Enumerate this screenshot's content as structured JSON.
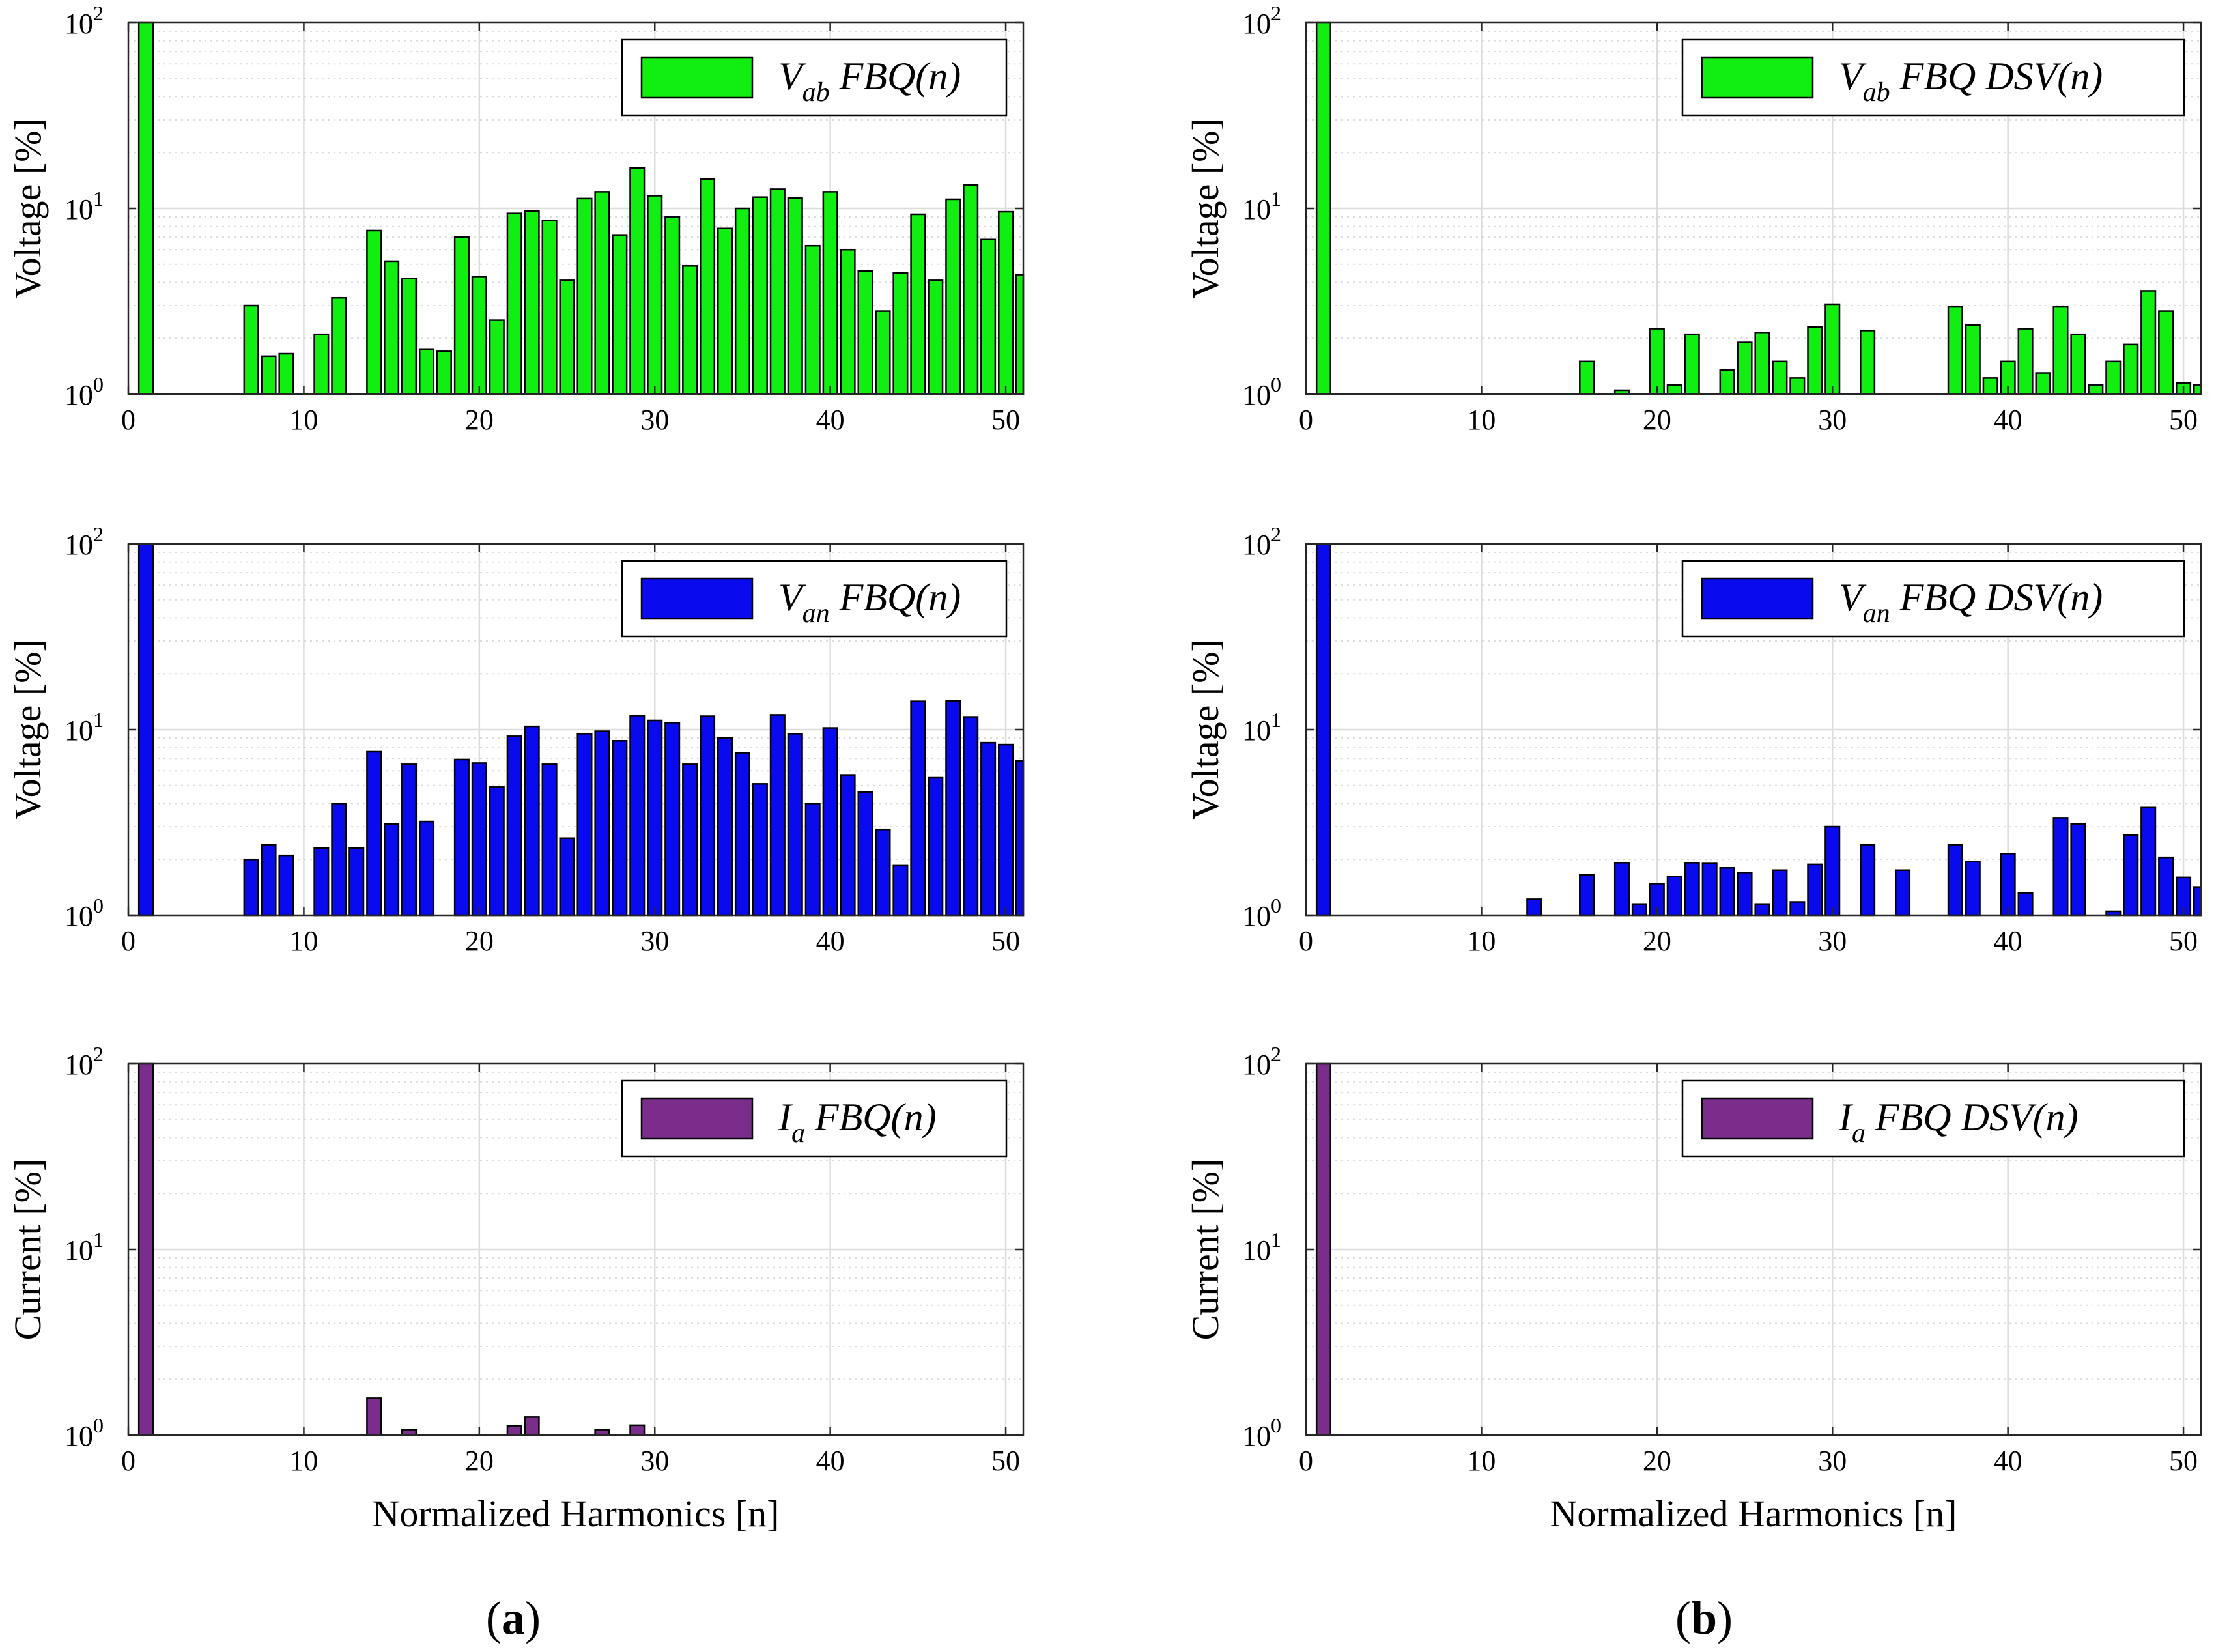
{
  "figure": {
    "captions": [
      {
        "open": "(",
        "letter": "a",
        "close": ")"
      },
      {
        "open": "(",
        "letter": "b",
        "close": ")"
      }
    ]
  },
  "colors": {
    "green": "#11ee11",
    "blue": "#0a0aee",
    "purple": "#7b2d8c",
    "grid": "#dcdcdc",
    "axis": "#262626"
  },
  "chart_data": [
    {
      "id": "vab-fbq",
      "type": "bar",
      "color_key": "green",
      "yscale": "log",
      "ylim": [
        1,
        100
      ],
      "xlim": [
        0,
        51
      ],
      "xticks": [
        "0",
        "10",
        "20",
        "30",
        "40",
        "50"
      ],
      "yticks": [
        {
          "base": "10",
          "exp": "0"
        },
        {
          "base": "10",
          "exp": "1"
        },
        {
          "base": "10",
          "exp": "2"
        }
      ],
      "ylabel": "Voltage [%]",
      "xlabel": "",
      "legend": {
        "sym": "V",
        "sub": "ab",
        "text": " FBQ(",
        "ital": "n",
        "close": ")"
      },
      "harmonic": [
        1,
        7,
        8,
        9,
        11,
        12,
        14,
        15,
        16,
        17,
        18,
        19,
        20,
        21,
        22,
        23,
        24,
        25,
        26,
        27,
        28,
        29,
        30,
        31,
        32,
        33,
        34,
        35,
        36,
        37,
        38,
        39,
        40,
        41,
        42,
        43,
        44,
        45,
        46,
        47,
        48,
        49,
        50,
        51
      ],
      "values": [
        100,
        3.0,
        1.6,
        1.65,
        2.1,
        3.3,
        7.6,
        5.2,
        4.2,
        1.75,
        1.7,
        7.0,
        4.3,
        2.5,
        9.4,
        9.7,
        8.6,
        4.1,
        11.3,
        12.3,
        7.2,
        16.5,
        11.7,
        9.0,
        4.9,
        14.4,
        7.8,
        10.0,
        11.5,
        12.7,
        11.4,
        6.3,
        12.3,
        6.0,
        4.6,
        2.8,
        4.5,
        9.3,
        4.1,
        11.2,
        13.4,
        6.8,
        9.6,
        4.4
      ]
    },
    {
      "id": "vab-fbq-dsv",
      "type": "bar",
      "color_key": "green",
      "yscale": "log",
      "ylim": [
        1,
        100
      ],
      "xlim": [
        0,
        51
      ],
      "xticks": [
        "0",
        "10",
        "20",
        "30",
        "40",
        "50"
      ],
      "yticks": [
        {
          "base": "10",
          "exp": "0"
        },
        {
          "base": "10",
          "exp": "1"
        },
        {
          "base": "10",
          "exp": "2"
        }
      ],
      "ylabel": "Voltage [%]",
      "xlabel": "",
      "legend": {
        "sym": "V",
        "sub": "ab",
        "text": " FBQ DSV(",
        "ital": "n",
        "close": ")"
      },
      "harmonic": [
        1,
        16,
        18,
        20,
        21,
        22,
        24,
        25,
        26,
        27,
        28,
        29,
        30,
        32,
        37,
        38,
        39,
        40,
        41,
        42,
        43,
        44,
        45,
        46,
        47,
        48,
        49,
        50,
        51
      ],
      "values": [
        100,
        1.5,
        1.05,
        2.25,
        1.12,
        2.1,
        1.35,
        1.9,
        2.15,
        1.5,
        1.22,
        2.3,
        3.05,
        2.2,
        2.95,
        2.35,
        1.22,
        1.5,
        2.25,
        1.3,
        2.95,
        2.1,
        1.12,
        1.5,
        1.85,
        3.6,
        2.8,
        1.15,
        1.12
      ]
    },
    {
      "id": "van-fbq",
      "type": "bar",
      "color_key": "blue",
      "yscale": "log",
      "ylim": [
        1,
        100
      ],
      "xlim": [
        0,
        51
      ],
      "xticks": [
        "0",
        "10",
        "20",
        "30",
        "40",
        "50"
      ],
      "yticks": [
        {
          "base": "10",
          "exp": "0"
        },
        {
          "base": "10",
          "exp": "1"
        },
        {
          "base": "10",
          "exp": "2"
        }
      ],
      "ylabel": "Voltage [%]",
      "xlabel": "",
      "legend": {
        "sym": "V",
        "sub": "an",
        "text": " FBQ(",
        "ital": "n",
        "close": ")"
      },
      "harmonic": [
        1,
        7,
        8,
        9,
        11,
        12,
        13,
        14,
        15,
        16,
        17,
        19,
        20,
        21,
        22,
        23,
        24,
        25,
        26,
        27,
        28,
        29,
        30,
        31,
        32,
        33,
        34,
        35,
        36,
        37,
        38,
        39,
        40,
        41,
        42,
        43,
        44,
        45,
        46,
        47,
        48,
        49,
        50,
        51
      ],
      "values": [
        100,
        2.0,
        2.4,
        2.1,
        2.3,
        4.0,
        2.3,
        7.6,
        3.1,
        6.5,
        3.2,
        6.9,
        6.6,
        4.9,
        9.2,
        10.4,
        6.5,
        2.6,
        9.5,
        9.8,
        8.7,
        11.9,
        11.2,
        10.9,
        6.5,
        11.8,
        9.0,
        7.5,
        5.1,
        12.0,
        9.5,
        4.0,
        10.2,
        5.7,
        4.6,
        2.9,
        1.85,
        14.2,
        5.5,
        14.3,
        11.7,
        8.5,
        8.3,
        6.8
      ]
    },
    {
      "id": "van-fbq-dsv",
      "type": "bar",
      "color_key": "blue",
      "yscale": "log",
      "ylim": [
        1,
        100
      ],
      "xlim": [
        0,
        51
      ],
      "xticks": [
        "0",
        "10",
        "20",
        "30",
        "40",
        "50"
      ],
      "yticks": [
        {
          "base": "10",
          "exp": "0"
        },
        {
          "base": "10",
          "exp": "1"
        },
        {
          "base": "10",
          "exp": "2"
        }
      ],
      "ylabel": "Voltage [%]",
      "xlabel": "",
      "legend": {
        "sym": "V",
        "sub": "an",
        "text": " FBQ DSV(",
        "ital": "n",
        "close": ")"
      },
      "harmonic": [
        1,
        13,
        16,
        18,
        19,
        20,
        21,
        22,
        23,
        24,
        25,
        26,
        27,
        28,
        29,
        30,
        32,
        34,
        37,
        38,
        40,
        41,
        43,
        44,
        46,
        47,
        48,
        49,
        50,
        51
      ],
      "values": [
        100,
        1.22,
        1.65,
        1.92,
        1.15,
        1.48,
        1.62,
        1.92,
        1.9,
        1.8,
        1.7,
        1.15,
        1.75,
        1.18,
        1.88,
        3.0,
        2.4,
        1.75,
        2.4,
        1.95,
        2.15,
        1.32,
        3.35,
        3.1,
        1.05,
        2.7,
        3.8,
        2.05,
        1.6,
        1.42
      ]
    },
    {
      "id": "ia-fbq",
      "type": "bar",
      "color_key": "purple",
      "yscale": "log",
      "ylim": [
        1,
        100
      ],
      "xlim": [
        0,
        51
      ],
      "xticks": [
        "0",
        "10",
        "20",
        "30",
        "40",
        "50"
      ],
      "yticks": [
        {
          "base": "10",
          "exp": "0"
        },
        {
          "base": "10",
          "exp": "1"
        },
        {
          "base": "10",
          "exp": "2"
        }
      ],
      "ylabel": "Current [%]",
      "xlabel": "Normalized Harmonics [n]",
      "legend": {
        "sym": "I",
        "sub": "a",
        "text": " FBQ(",
        "ital": "n",
        "close": ")"
      },
      "harmonic": [
        1,
        14,
        16,
        22,
        23,
        27,
        29
      ],
      "values": [
        100,
        1.58,
        1.07,
        1.12,
        1.25,
        1.07,
        1.13
      ]
    },
    {
      "id": "ia-fbq-dsv",
      "type": "bar",
      "color_key": "purple",
      "yscale": "log",
      "ylim": [
        1,
        100
      ],
      "xlim": [
        0,
        51
      ],
      "xticks": [
        "0",
        "10",
        "20",
        "30",
        "40",
        "50"
      ],
      "yticks": [
        {
          "base": "10",
          "exp": "0"
        },
        {
          "base": "10",
          "exp": "1"
        },
        {
          "base": "10",
          "exp": "2"
        }
      ],
      "ylabel": "Current [%]",
      "xlabel": "Normalized Harmonics [n]",
      "legend": {
        "sym": "I",
        "sub": "a",
        "text": " FBQ DSV(",
        "ital": "n",
        "close": ")"
      },
      "harmonic": [
        1
      ],
      "values": [
        100
      ]
    }
  ]
}
